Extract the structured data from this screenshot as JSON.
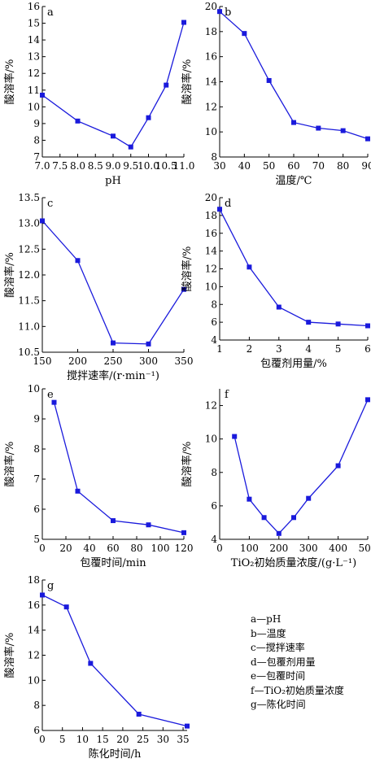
{
  "chart_data": [
    {
      "id": "a",
      "type": "line",
      "panel_label": "a",
      "xlabel": "pH",
      "ylabel": "酸溶率/%",
      "xlim": [
        7.0,
        11.0
      ],
      "ylim": [
        7,
        16
      ],
      "xticks": [
        7.0,
        7.5,
        8.0,
        8.5,
        9.0,
        9.5,
        10.0,
        10.5,
        11.0
      ],
      "xtick_labels": [
        "7.0",
        "7.5",
        "8.0",
        "8.5",
        "9.0",
        "9.5",
        "10.0",
        "10.5",
        "11.0"
      ],
      "yticks": [
        7,
        8,
        9,
        10,
        11,
        12,
        13,
        14,
        15,
        16
      ],
      "ytick_labels": [
        "7",
        "8",
        "9",
        "10",
        "11",
        "12",
        "13",
        "14",
        "15",
        "16"
      ],
      "x": [
        7.0,
        8.0,
        9.0,
        9.5,
        10.0,
        10.5,
        11.0
      ],
      "y": [
        10.7,
        9.15,
        8.25,
        7.6,
        9.35,
        11.3,
        15.05
      ]
    },
    {
      "id": "b",
      "type": "line",
      "panel_label": "b",
      "xlabel": "温度/℃",
      "ylabel": "酸溶率/%",
      "xlim": [
        30,
        90
      ],
      "ylim": [
        8,
        20
      ],
      "xticks": [
        30,
        40,
        50,
        60,
        70,
        80,
        90
      ],
      "xtick_labels": [
        "30",
        "40",
        "50",
        "60",
        "70",
        "80",
        "90"
      ],
      "yticks": [
        8,
        10,
        12,
        14,
        16,
        18,
        20
      ],
      "ytick_labels": [
        "8",
        "10",
        "12",
        "14",
        "16",
        "18",
        "20"
      ],
      "x": [
        30,
        40,
        50,
        60,
        70,
        80,
        90
      ],
      "y": [
        19.6,
        17.85,
        14.1,
        10.75,
        10.3,
        10.1,
        9.45
      ]
    },
    {
      "id": "c",
      "type": "line",
      "panel_label": "c",
      "xlabel": "搅拌速率/(r·min⁻¹)",
      "ylabel": "酸溶率/%",
      "xlim": [
        150,
        350
      ],
      "ylim": [
        10.5,
        13.5
      ],
      "xticks": [
        150,
        200,
        250,
        300,
        350
      ],
      "xtick_labels": [
        "150",
        "200",
        "250",
        "300",
        "350"
      ],
      "yticks": [
        10.5,
        11.0,
        11.5,
        12.0,
        12.5,
        13.0,
        13.5
      ],
      "ytick_labels": [
        "10.5",
        "11.0",
        "11.5",
        "12.0",
        "12.5",
        "13.0",
        "13.5"
      ],
      "x": [
        150,
        200,
        250,
        300,
        350
      ],
      "y": [
        13.05,
        12.28,
        10.68,
        10.66,
        11.72
      ]
    },
    {
      "id": "d",
      "type": "line",
      "panel_label": "d",
      "xlabel": "包覆剂用量/%",
      "ylabel": "酸溶率/%",
      "xlim": [
        1,
        6
      ],
      "ylim": [
        4,
        20
      ],
      "xticks": [
        1,
        2,
        3,
        4,
        5,
        6
      ],
      "xtick_labels": [
        "1",
        "2",
        "3",
        "4",
        "5",
        "6"
      ],
      "yticks": [
        4,
        6,
        8,
        10,
        12,
        14,
        16,
        18,
        20
      ],
      "ytick_labels": [
        "4",
        "6",
        "8",
        "10",
        "12",
        "14",
        "16",
        "18",
        "20"
      ],
      "x": [
        1,
        2,
        3,
        4,
        5,
        6
      ],
      "y": [
        18.7,
        12.2,
        7.7,
        6.0,
        5.8,
        5.6
      ]
    },
    {
      "id": "e",
      "type": "line",
      "panel_label": "e",
      "xlabel": "包覆时间/min",
      "ylabel": "酸溶率/%",
      "xlim": [
        0,
        120
      ],
      "ylim": [
        5,
        10
      ],
      "xticks": [
        0,
        20,
        40,
        60,
        80,
        100,
        120
      ],
      "xtick_labels": [
        "0",
        "20",
        "40",
        "60",
        "80",
        "100",
        "120"
      ],
      "yticks": [
        5,
        6,
        7,
        8,
        9,
        10
      ],
      "ytick_labels": [
        "5",
        "6",
        "7",
        "8",
        "9",
        "10"
      ],
      "x": [
        10,
        30,
        60,
        90,
        120
      ],
      "y": [
        9.55,
        6.6,
        5.62,
        5.48,
        5.22
      ]
    },
    {
      "id": "f",
      "type": "line",
      "panel_label": "f",
      "xlabel": "TiO₂初始质量浓度/(g·L⁻¹)",
      "ylabel": "酸溶率/%",
      "xlim": [
        0,
        500
      ],
      "ylim": [
        4,
        13
      ],
      "xticks": [
        0,
        100,
        200,
        300,
        400,
        500
      ],
      "xtick_labels": [
        "0",
        "100",
        "200",
        "300",
        "400",
        "500"
      ],
      "yticks": [
        4,
        6,
        8,
        10,
        12
      ],
      "ytick_labels": [
        "4",
        "6",
        "8",
        "10",
        "12"
      ],
      "x": [
        50,
        100,
        150,
        200,
        250,
        300,
        400,
        500
      ],
      "y": [
        10.15,
        6.4,
        5.3,
        4.35,
        5.3,
        6.45,
        8.4,
        12.35
      ]
    },
    {
      "id": "g",
      "type": "line",
      "panel_label": "g",
      "xlabel": "陈化时间/h",
      "ylabel": "酸溶率/%",
      "xlim": [
        0,
        36
      ],
      "ylim": [
        6,
        18
      ],
      "xticks": [
        0,
        5,
        10,
        15,
        20,
        25,
        30,
        35
      ],
      "xtick_labels": [
        "0",
        "5",
        "10",
        "15",
        "20",
        "25",
        "30",
        "35"
      ],
      "yticks": [
        6,
        8,
        10,
        12,
        14,
        16,
        18
      ],
      "ytick_labels": [
        "6",
        "8",
        "10",
        "12",
        "14",
        "16",
        "18"
      ],
      "x": [
        0,
        6,
        12,
        24,
        36
      ],
      "y": [
        16.8,
        15.85,
        11.35,
        7.3,
        6.35
      ]
    }
  ],
  "legend": [
    "a—pH",
    "b—温度",
    "c—搅拌速率",
    "d—包覆剂用量",
    "e—包覆时间",
    "f—TiO₂初始质量浓度",
    "g—陈化时间"
  ],
  "colors": {
    "series": "#1a1adc",
    "axis": "#000000"
  }
}
